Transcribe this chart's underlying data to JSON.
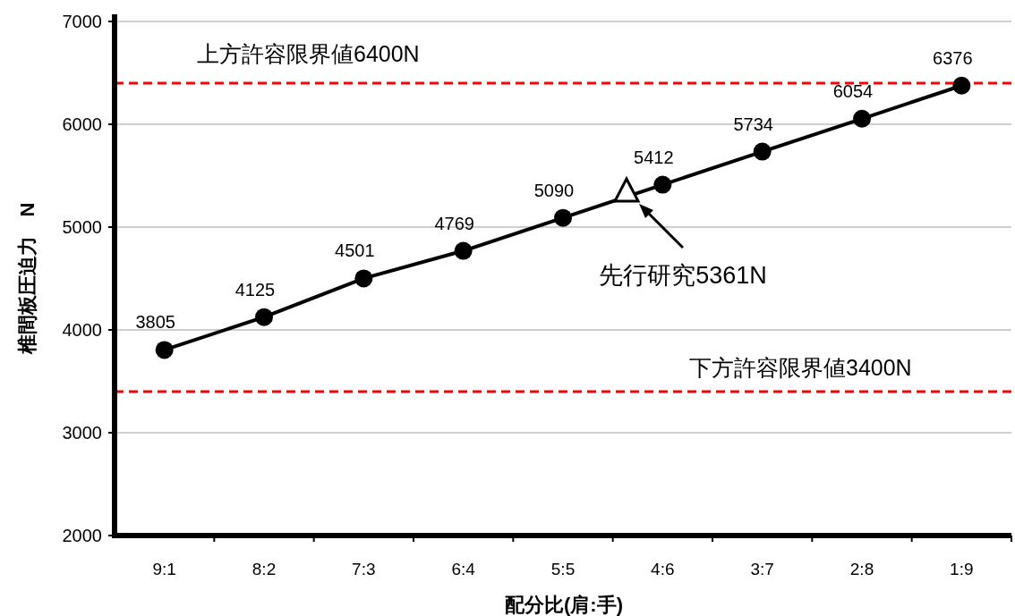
{
  "chart_data": {
    "type": "line",
    "xlabel": "配分比(肩:手)",
    "ylabel": "椎間板圧迫力　N",
    "categories": [
      "9:1",
      "8:2",
      "7:3",
      "6:4",
      "5:5",
      "4:6",
      "3:7",
      "2:8",
      "1:9"
    ],
    "series": [
      {
        "color": "#000000",
        "values": [
          3805,
          4125,
          4501,
          4769,
          5090,
          5412,
          5734,
          6054,
          6376
        ]
      }
    ],
    "ylim": [
      2000,
      7000
    ],
    "yticks": [
      2000,
      3000,
      4000,
      5000,
      6000,
      7000
    ],
    "grid": "y",
    "marker": "circle",
    "line_style": "solid",
    "data_labels": true,
    "ref_lines": [
      {
        "axis": "y",
        "value": 6400,
        "label": "上方許容限界値6400N",
        "color": "#ff0000",
        "line_style": "dashed"
      },
      {
        "axis": "y",
        "value": 3400,
        "label": "下方許容限界値3400N",
        "color": "#ff0000",
        "line_style": "dashed"
      }
    ],
    "annotations": [
      "先行研究5361N"
    ]
  }
}
